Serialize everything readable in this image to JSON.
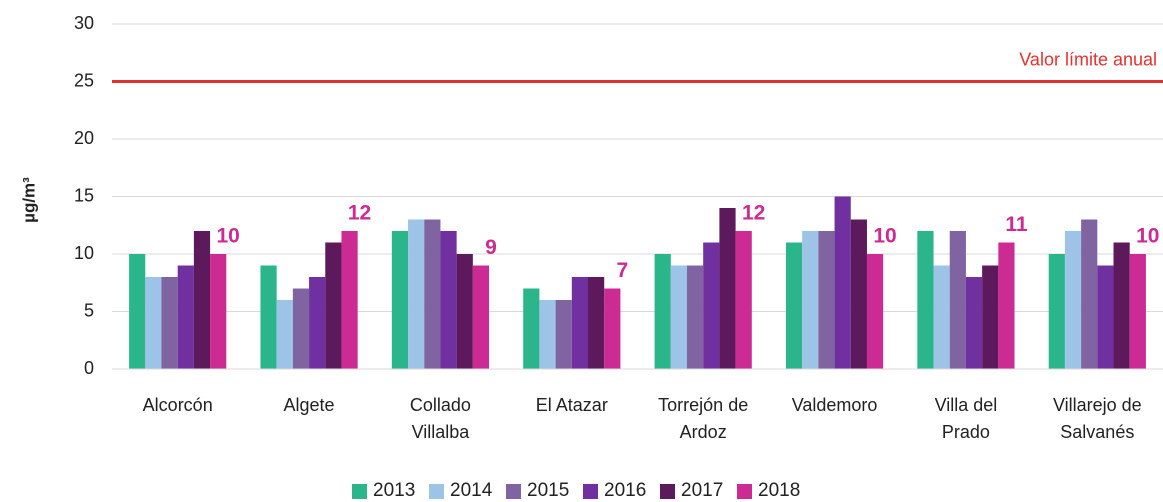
{
  "chart_data": {
    "type": "bar",
    "y_label": "µg/m³",
    "categories": [
      "Alcorcón",
      "Algete",
      "Collado\nVillalba",
      "El Atazar",
      "Torrejón de\nArdoz",
      "Valdemoro",
      "Villa del\nPrado",
      "Villarejo de\nSalvanés"
    ],
    "series": [
      {
        "name": "2013",
        "color": "#2bb58a",
        "values": [
          10,
          9,
          12,
          7,
          10,
          11,
          12,
          10
        ]
      },
      {
        "name": "2014",
        "color": "#9dc3e6",
        "values": [
          8,
          6,
          13,
          6,
          9,
          12,
          9,
          12
        ]
      },
      {
        "name": "2015",
        "color": "#8064a2",
        "values": [
          8,
          7,
          13,
          6,
          9,
          12,
          12,
          13
        ]
      },
      {
        "name": "2016",
        "color": "#7030a0",
        "values": [
          9,
          8,
          12,
          8,
          11,
          15,
          8,
          9
        ]
      },
      {
        "name": "2017",
        "color": "#5c1a5c",
        "values": [
          12,
          11,
          10,
          8,
          14,
          13,
          9,
          11
        ]
      },
      {
        "name": "2018",
        "color": "#cc2b94",
        "values": [
          10,
          12,
          9,
          7,
          12,
          10,
          11,
          10
        ],
        "labeled": true
      }
    ],
    "reference_line": {
      "value": 25,
      "label": "Valor límite anual",
      "color": "#e53030"
    },
    "ylim": [
      0,
      30
    ],
    "yticks": [
      0,
      5,
      10,
      15,
      20,
      25,
      30
    ],
    "grid": true
  }
}
